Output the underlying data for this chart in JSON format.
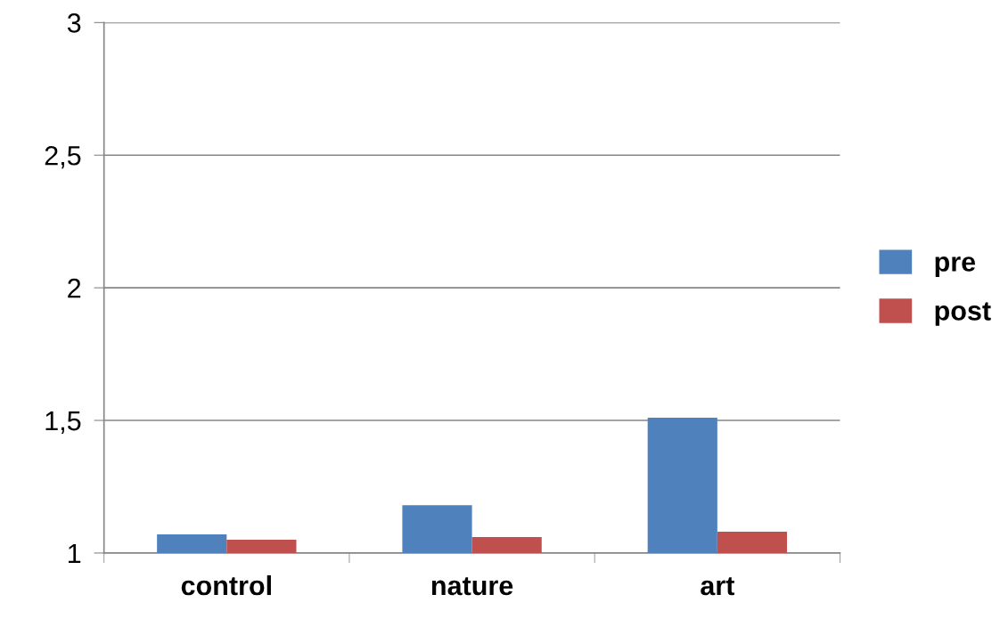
{
  "chart_data": {
    "type": "bar",
    "categories": [
      "control",
      "nature",
      "art"
    ],
    "series": [
      {
        "name": "pre",
        "color": "#4f81bd",
        "values": [
          1.07,
          1.18,
          1.51
        ]
      },
      {
        "name": "post",
        "color": "#c0504d",
        "values": [
          1.05,
          1.06,
          1.08
        ]
      }
    ],
    "ylim": [
      1,
      3
    ],
    "yticks": [
      1,
      {
        "value": 1.5,
        "label": "1,5"
      },
      2,
      {
        "value": 2.5,
        "label": "2,5"
      },
      3
    ],
    "grid": "y",
    "legend": "right"
  }
}
